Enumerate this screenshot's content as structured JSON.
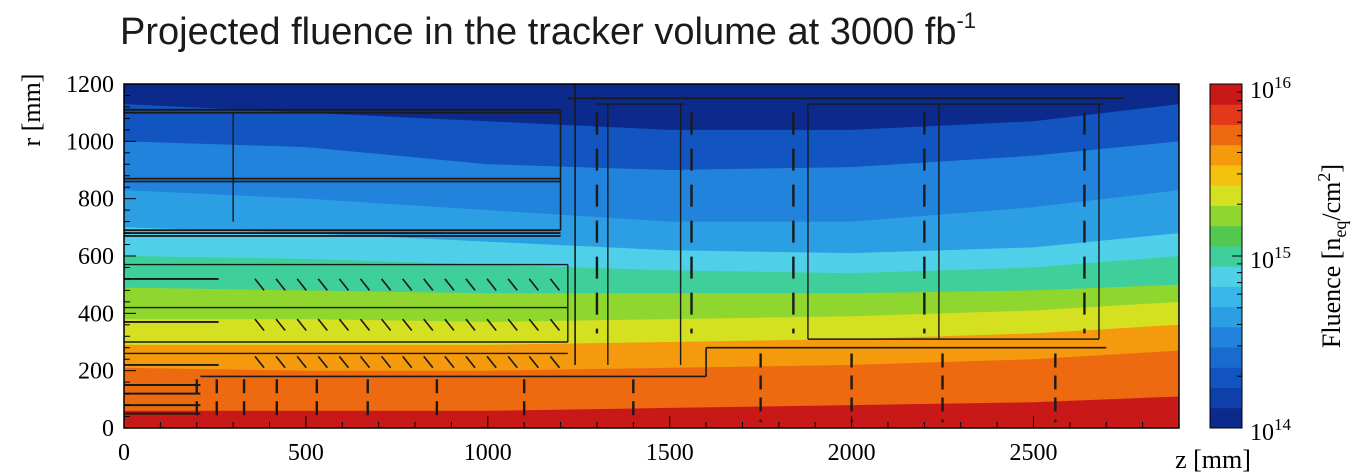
{
  "chart_data": {
    "type": "heatmap",
    "title": "Projected fluence in the tracker volume at 3000 fb",
    "title_superscript": "-1",
    "xlabel": "z [mm]",
    "ylabel": "r [mm]",
    "xlim": [
      0,
      2900
    ],
    "ylim": [
      0,
      1200
    ],
    "x_ticks": [
      0,
      500,
      1000,
      1500,
      2000,
      2500
    ],
    "y_ticks": [
      0,
      200,
      400,
      600,
      800,
      1000,
      1200
    ],
    "colorbar": {
      "label": "Fluence [n",
      "label_subscript": "eq",
      "label_suffix": "/cm",
      "label_superscript": "2",
      "label_close": "]",
      "scale": "log",
      "range": [
        100000000000000.0,
        1e+16
      ],
      "tick_bases": [
        "10",
        "10",
        "10"
      ],
      "tick_exponents": [
        "16",
        "15",
        "14"
      ],
      "tick_values": [
        1e+16,
        1000000000000000.0,
        100000000000000.0
      ],
      "color_levels": [
        "#0b2a8c",
        "#0f3fa8",
        "#1254c0",
        "#1a6ad0",
        "#2283dc",
        "#2c9ee4",
        "#38b8ea",
        "#4fd0e8",
        "#3fcf9a",
        "#52c94e",
        "#8fd62e",
        "#d4e020",
        "#f4c20e",
        "#f49a0c",
        "#ee6a10",
        "#e4381a",
        "#c81818"
      ]
    },
    "fluence_boundaries": [
      {
        "level": 250000000000000.0,
        "r": [
          1130,
          1100,
          1070,
          1040,
          1040,
          1070,
          1130
        ]
      },
      {
        "level": 400000000000000.0,
        "r": [
          1000,
          980,
          920,
          900,
          910,
          950,
          1000
        ]
      },
      {
        "level": 630000000000000.0,
        "r": [
          830,
          800,
          760,
          720,
          720,
          770,
          830
        ]
      },
      {
        "level": 1000000000000000.0,
        "r": [
          700,
          680,
          650,
          620,
          610,
          630,
          680
        ]
      },
      {
        "level": 1600000000000000.0,
        "r": [
          600,
          590,
          570,
          550,
          540,
          560,
          600
        ]
      },
      {
        "level": 2500000000000000.0,
        "r": [
          490,
          480,
          470,
          470,
          470,
          480,
          500
        ]
      },
      {
        "level": 4000000000000000.0,
        "r": [
          380,
          380,
          370,
          380,
          390,
          410,
          440
        ]
      },
      {
        "level": 6300000000000000.0,
        "r": [
          290,
          290,
          290,
          300,
          310,
          330,
          360
        ]
      },
      {
        "level": 8000000000000000.0,
        "r": [
          210,
          200,
          200,
          210,
          220,
          240,
          270
        ]
      },
      {
        "level": 1e+16,
        "r": [
          60,
          60,
          60,
          70,
          80,
          90,
          110
        ]
      }
    ],
    "boundary_z": [
      0,
      500,
      1000,
      1500,
      2000,
      2500,
      2900
    ]
  }
}
